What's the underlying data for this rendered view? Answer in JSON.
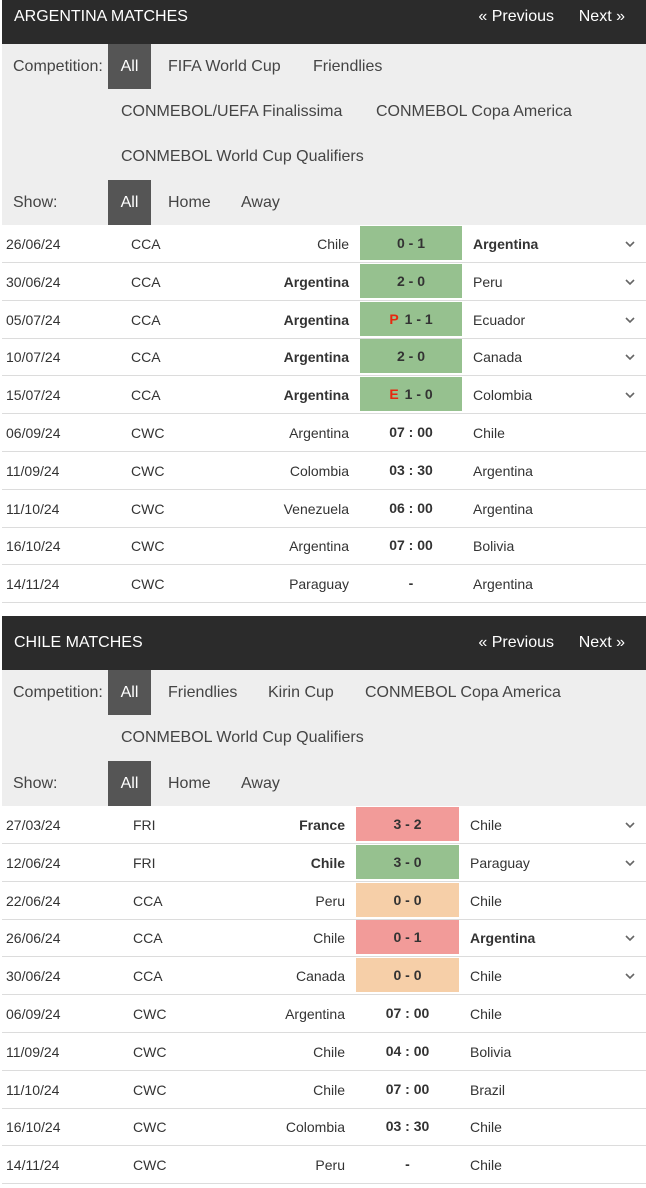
{
  "argentina": {
    "title": "ARGENTINA MATCHES",
    "prev": "« Previous",
    "next": "Next »",
    "competition_label": "Competition:",
    "competition_options": [
      "All",
      "FIFA World Cup",
      "Friendlies",
      "CONMEBOL/UEFA Finalissima",
      "CONMEBOL Copa America",
      "CONMEBOL World Cup Qualifiers"
    ],
    "show_label": "Show:",
    "show_options": [
      "All",
      "Home",
      "Away"
    ],
    "matches": [
      {
        "date": "26/06/24",
        "comp": "CCA",
        "home": "Chile",
        "score": "0 - 1",
        "away": "Argentina",
        "result": "win",
        "bold": "away",
        "tag": "",
        "expand": true
      },
      {
        "date": "30/06/24",
        "comp": "CCA",
        "home": "Argentina",
        "score": "2 - 0",
        "away": "Peru",
        "result": "win",
        "bold": "home",
        "tag": "",
        "expand": true
      },
      {
        "date": "05/07/24",
        "comp": "CCA",
        "home": "Argentina",
        "score": "1 - 1",
        "away": "Ecuador",
        "result": "win",
        "bold": "home",
        "tag": "P",
        "expand": true
      },
      {
        "date": "10/07/24",
        "comp": "CCA",
        "home": "Argentina",
        "score": "2 - 0",
        "away": "Canada",
        "result": "win",
        "bold": "home",
        "tag": "",
        "expand": true
      },
      {
        "date": "15/07/24",
        "comp": "CCA",
        "home": "Argentina",
        "score": "1 - 0",
        "away": "Colombia",
        "result": "win",
        "bold": "home",
        "tag": "E",
        "expand": true
      },
      {
        "date": "06/09/24",
        "comp": "CWC",
        "home": "Argentina",
        "score": "07 : 00",
        "away": "Chile",
        "result": "time",
        "bold": "",
        "tag": "",
        "expand": false
      },
      {
        "date": "11/09/24",
        "comp": "CWC",
        "home": "Colombia",
        "score": "03 : 30",
        "away": "Argentina",
        "result": "time",
        "bold": "",
        "tag": "",
        "expand": false
      },
      {
        "date": "11/10/24",
        "comp": "CWC",
        "home": "Venezuela",
        "score": "06 : 00",
        "away": "Argentina",
        "result": "time",
        "bold": "",
        "tag": "",
        "expand": false
      },
      {
        "date": "16/10/24",
        "comp": "CWC",
        "home": "Argentina",
        "score": "07 : 00",
        "away": "Bolivia",
        "result": "time",
        "bold": "",
        "tag": "",
        "expand": false
      },
      {
        "date": "14/11/24",
        "comp": "CWC",
        "home": "Paraguay",
        "score": "-",
        "away": "Argentina",
        "result": "time",
        "bold": "",
        "tag": "",
        "expand": false
      }
    ]
  },
  "chile": {
    "title": "CHILE MATCHES",
    "prev": "« Previous",
    "next": "Next »",
    "competition_label": "Competition:",
    "competition_options": [
      "All",
      "Friendlies",
      "Kirin Cup",
      "CONMEBOL Copa America",
      "CONMEBOL World Cup Qualifiers"
    ],
    "show_label": "Show:",
    "show_options": [
      "All",
      "Home",
      "Away"
    ],
    "matches": [
      {
        "date": "27/03/24",
        "comp": "FRI",
        "home": "France",
        "score": "3 - 2",
        "away": "Chile",
        "result": "loss",
        "bold": "home",
        "tag": "",
        "expand": true
      },
      {
        "date": "12/06/24",
        "comp": "FRI",
        "home": "Chile",
        "score": "3 - 0",
        "away": "Paraguay",
        "result": "win",
        "bold": "home",
        "tag": "",
        "expand": true
      },
      {
        "date": "22/06/24",
        "comp": "CCA",
        "home": "Peru",
        "score": "0 - 0",
        "away": "Chile",
        "result": "draw",
        "bold": "",
        "tag": "",
        "expand": false
      },
      {
        "date": "26/06/24",
        "comp": "CCA",
        "home": "Chile",
        "score": "0 - 1",
        "away": "Argentina",
        "result": "loss",
        "bold": "away",
        "tag": "",
        "expand": true
      },
      {
        "date": "30/06/24",
        "comp": "CCA",
        "home": "Canada",
        "score": "0 - 0",
        "away": "Chile",
        "result": "draw",
        "bold": "",
        "tag": "",
        "expand": true
      },
      {
        "date": "06/09/24",
        "comp": "CWC",
        "home": "Argentina",
        "score": "07 : 00",
        "away": "Chile",
        "result": "time",
        "bold": "",
        "tag": "",
        "expand": false
      },
      {
        "date": "11/09/24",
        "comp": "CWC",
        "home": "Chile",
        "score": "04 : 00",
        "away": "Bolivia",
        "result": "time",
        "bold": "",
        "tag": "",
        "expand": false
      },
      {
        "date": "11/10/24",
        "comp": "CWC",
        "home": "Chile",
        "score": "07 : 00",
        "away": "Brazil",
        "result": "time",
        "bold": "",
        "tag": "",
        "expand": false
      },
      {
        "date": "16/10/24",
        "comp": "CWC",
        "home": "Colombia",
        "score": "03 : 30",
        "away": "Chile",
        "result": "time",
        "bold": "",
        "tag": "",
        "expand": false
      },
      {
        "date": "14/11/24",
        "comp": "CWC",
        "home": "Peru",
        "score": "-",
        "away": "Chile",
        "result": "time",
        "bold": "",
        "tag": "",
        "expand": false
      }
    ]
  },
  "colors": {
    "win": "#96c18f",
    "loss": "#f29b99",
    "draw": "#f6cfa8",
    "header": "#2b2b2b",
    "tag": "#e8280f"
  }
}
